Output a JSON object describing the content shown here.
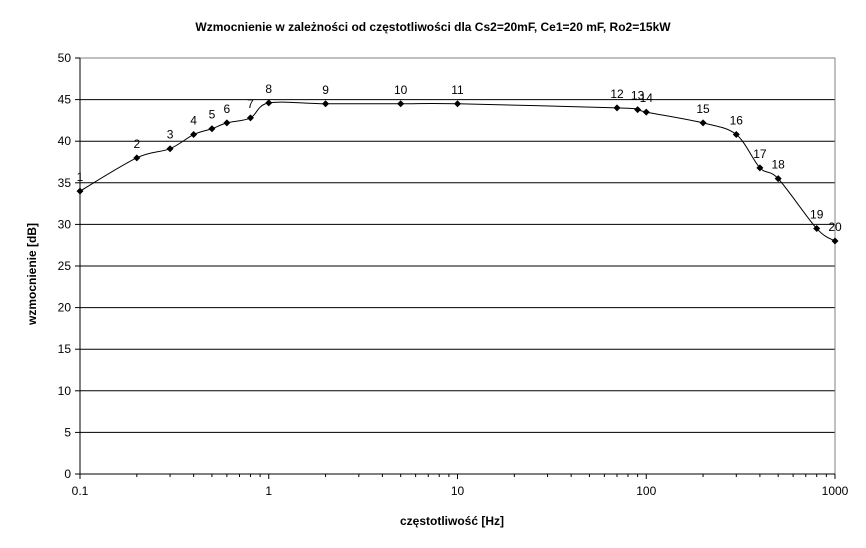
{
  "chart_data": {
    "type": "line",
    "title": "Wzmocnienie w zależności od częstotliwości dla Cs2=20mF, Ce1=20 mF, Ro2=15kW",
    "xlabel": "częstotliwość [Hz]",
    "ylabel": "wzmocnienie [dB]",
    "x_scale": "log",
    "xlim": [
      0.1,
      1000
    ],
    "ylim": [
      0,
      50
    ],
    "x_ticks": [
      "0.1",
      "1",
      "10",
      "100",
      "1000"
    ],
    "y_ticks": [
      "0",
      "5",
      "10",
      "15",
      "20",
      "25",
      "30",
      "35",
      "40",
      "45",
      "50"
    ],
    "grid": "horizontal",
    "colors": {
      "line": "#000000",
      "grid": "#000000",
      "frame": "#808080"
    },
    "points": [
      {
        "label": "1",
        "x": 0.1,
        "y": 34.0
      },
      {
        "label": "2",
        "x": 0.2,
        "y": 38.0
      },
      {
        "label": "3",
        "x": 0.3,
        "y": 39.1
      },
      {
        "label": "4",
        "x": 0.4,
        "y": 40.8
      },
      {
        "label": "5",
        "x": 0.5,
        "y": 41.5
      },
      {
        "label": "6",
        "x": 0.6,
        "y": 42.2
      },
      {
        "label": "7",
        "x": 0.8,
        "y": 42.8
      },
      {
        "label": "8",
        "x": 1,
        "y": 44.6
      },
      {
        "label": "9",
        "x": 2,
        "y": 44.5
      },
      {
        "label": "10",
        "x": 5,
        "y": 44.5
      },
      {
        "label": "11",
        "x": 10,
        "y": 44.5
      },
      {
        "label": "12",
        "x": 70,
        "y": 44.0
      },
      {
        "label": "13",
        "x": 90,
        "y": 43.8
      },
      {
        "label": "14",
        "x": 100,
        "y": 43.5
      },
      {
        "label": "15",
        "x": 200,
        "y": 42.2
      },
      {
        "label": "16",
        "x": 300,
        "y": 40.8
      },
      {
        "label": "17",
        "x": 400,
        "y": 36.8
      },
      {
        "label": "18",
        "x": 500,
        "y": 35.5
      },
      {
        "label": "19",
        "x": 800,
        "y": 29.5
      },
      {
        "label": "20",
        "x": 1000,
        "y": 28.0
      }
    ]
  }
}
